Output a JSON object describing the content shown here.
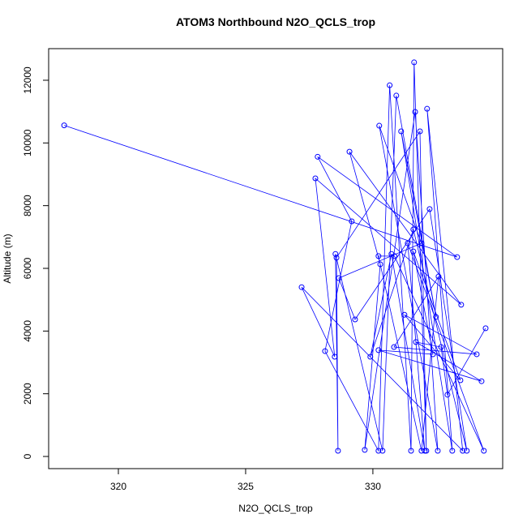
{
  "chart_data": {
    "type": "line",
    "title": "ATOM3 Northbound N2O_QCLS_trop",
    "x_label": "N2O_QCLS_trop",
    "y_label": "Altitude (m)",
    "xlim": [
      317.26,
      335.1
    ],
    "ylim": [
      -388,
      13008
    ],
    "xticks": [
      320,
      325,
      330
    ],
    "yticks": [
      0,
      2000,
      4000,
      6000,
      8000,
      10000,
      12000
    ],
    "series": [
      {
        "color": "#0000ff",
        "x": [
          317.87,
          333.31,
          327.83,
          329.17,
          328.12,
          330.22,
          330.66,
          331.5,
          331.62,
          332.1,
          331.85,
          328.57,
          328.63,
          328.53,
          330.38,
          330.92,
          332.48,
          331.11,
          333.12,
          332.13,
          333.53,
          327.2,
          328.5,
          327.74,
          333.47,
          329.08,
          330.29,
          329.68,
          331.66,
          332.55,
          330.25,
          331.91,
          328.66,
          329.3,
          332.23,
          333.69,
          331.59,
          329.9,
          330.73,
          332.04,
          331.37,
          334.36,
          330.85,
          330.22,
          331.91,
          332.58,
          330.83,
          334.08,
          331.24,
          333.44,
          331.59,
          332.36,
          330.22,
          334.27,
          331.69,
          332.68,
          332.93,
          334.43
        ],
        "values": [
          10560,
          6360,
          9560,
          7500,
          3360,
          180,
          11840,
          180,
          12570,
          180,
          10370,
          6340,
          180,
          6460,
          180,
          11510,
          4450,
          10370,
          180,
          11090,
          180,
          5400,
          3180,
          8870,
          4840,
          9720,
          6130,
          210,
          10990,
          180,
          10550,
          6800,
          5690,
          4370,
          7890,
          180,
          7240,
          3180,
          6460,
          180,
          6800,
          180,
          6390,
          6390,
          180,
          5740,
          3490,
          3260,
          4520,
          2430,
          6540,
          3260,
          3390,
          2400,
          3650,
          3490,
          1970,
          4090
        ]
      }
    ]
  }
}
